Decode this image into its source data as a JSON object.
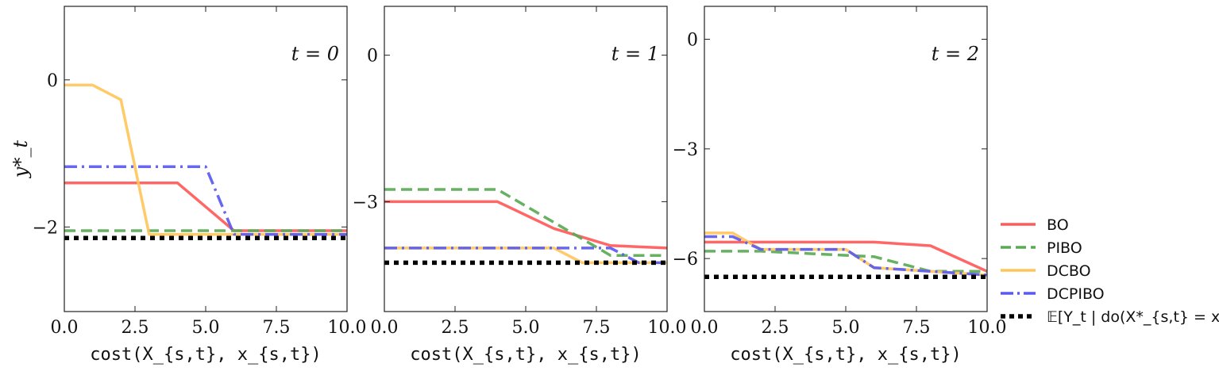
{
  "chart_data": [
    {
      "type": "line",
      "annotation": "t = 0",
      "xlabel": "cost(X_{s,t}, x_{s,t})",
      "ylabel": "y*_t",
      "xlim": [
        0,
        10
      ],
      "ylim": [
        -3.15,
        1.0
      ],
      "xticks": [
        "0.0",
        "2.5",
        "5.0",
        "7.5",
        "10.0"
      ],
      "yticks": [
        {
          "value": 0,
          "label": "0"
        },
        {
          "value": -2,
          "label": "−2"
        }
      ],
      "series": [
        {
          "name": "BO",
          "x": [
            0,
            4,
            6,
            10
          ],
          "y": [
            -1.4,
            -1.4,
            -2.05,
            -2.05
          ]
        },
        {
          "name": "PIBO",
          "x": [
            0,
            10
          ],
          "y": [
            -2.05,
            -2.05
          ]
        },
        {
          "name": "DCBO",
          "x": [
            0,
            1,
            2,
            3,
            10
          ],
          "y": [
            -0.07,
            -0.07,
            -0.27,
            -2.1,
            -2.1
          ]
        },
        {
          "name": "DCPIBO",
          "x": [
            0,
            5,
            6,
            10
          ],
          "y": [
            -1.18,
            -1.18,
            -2.1,
            -2.1
          ]
        },
        {
          "name": "𝔼[Y_t | do(X*_{s,t} = x*_{s,t})]",
          "x": [
            0,
            10
          ],
          "y": [
            -2.15,
            -2.15
          ]
        }
      ]
    },
    {
      "type": "line",
      "annotation": "t = 1",
      "xlabel": "cost(X_{s,t}, x_{s,t})",
      "xlim": [
        0,
        10
      ],
      "ylim": [
        -5.25,
        1.0
      ],
      "xticks": [
        "0.0",
        "2.5",
        "5.0",
        "7.5",
        "10.0"
      ],
      "yticks": [
        {
          "value": 0,
          "label": "0"
        },
        {
          "value": -3,
          "label": "−3"
        }
      ],
      "series": [
        {
          "name": "BO",
          "x": [
            0,
            4,
            6,
            8,
            10
          ],
          "y": [
            -3.0,
            -3.0,
            -3.55,
            -3.9,
            -3.95
          ]
        },
        {
          "name": "PIBO",
          "x": [
            0,
            4,
            8,
            10
          ],
          "y": [
            -2.75,
            -2.75,
            -4.1,
            -4.1
          ]
        },
        {
          "name": "DCBO",
          "x": [
            0,
            6,
            7,
            10
          ],
          "y": [
            -3.95,
            -3.95,
            -4.25,
            -4.25
          ]
        },
        {
          "name": "DCPIBO",
          "x": [
            0,
            8,
            9,
            10
          ],
          "y": [
            -3.95,
            -3.95,
            -4.25,
            -4.25
          ]
        },
        {
          "name": "𝔼[Y_t | do(X*_{s,t} = x*_{s,t})]",
          "x": [
            0,
            10
          ],
          "y": [
            -4.25,
            -4.25
          ]
        }
      ]
    },
    {
      "type": "line",
      "annotation": "t = 2",
      "xlabel": "cost(X_{s,t}, x_{s,t})",
      "xlim": [
        0,
        10
      ],
      "ylim": [
        -7.45,
        0.9
      ],
      "xticks": [
        "0.0",
        "2.5",
        "5.0",
        "7.5",
        "10.0"
      ],
      "yticks": [
        {
          "value": 0,
          "label": "0"
        },
        {
          "value": -3,
          "label": "−3"
        },
        {
          "value": -6,
          "label": "−6"
        }
      ],
      "series": [
        {
          "name": "BO",
          "x": [
            0,
            6,
            8,
            10
          ],
          "y": [
            -5.55,
            -5.55,
            -5.65,
            -6.35
          ]
        },
        {
          "name": "PIBO",
          "x": [
            0,
            1,
            2,
            6,
            8,
            10
          ],
          "y": [
            -5.8,
            -5.8,
            -5.8,
            -5.95,
            -6.35,
            -6.35
          ]
        },
        {
          "name": "DCBO",
          "x": [
            0,
            1,
            2,
            5,
            6,
            10
          ],
          "y": [
            -5.3,
            -5.3,
            -5.75,
            -5.75,
            -6.25,
            -6.45
          ]
        },
        {
          "name": "DCPIBO",
          "x": [
            0,
            1,
            2,
            5,
            6,
            10
          ],
          "y": [
            -5.4,
            -5.4,
            -5.75,
            -5.75,
            -6.25,
            -6.45
          ]
        },
        {
          "name": "𝔼[Y_t | do(X*_{s,t} = x*_{s,t})]",
          "x": [
            0,
            10
          ],
          "y": [
            -6.5,
            -6.5
          ]
        }
      ]
    }
  ],
  "legend": {
    "placement": "right-bottom",
    "entries": [
      {
        "label": "BO",
        "color": "#ff5a5a",
        "style": "solid"
      },
      {
        "label": "PIBO",
        "color": "#5aaa55",
        "style": "dashed"
      },
      {
        "label": "DCBO",
        "color": "#ffc55a",
        "style": "solid"
      },
      {
        "label": "DCPIBO",
        "color": "#5a5af0",
        "style": "dashdot"
      },
      {
        "label": "𝔼[Y_t | do(X*_{s,t} = x*_{s,t})]",
        "color": "#000000",
        "style": "dotted"
      }
    ]
  }
}
